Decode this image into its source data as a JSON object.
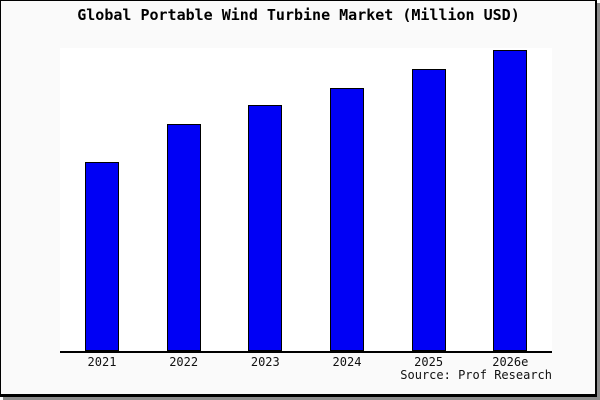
{
  "chart_data": {
    "type": "bar",
    "title": "Global Portable Wind Turbine Market (Million USD)",
    "categories": [
      "2021",
      "2022",
      "2023",
      "2024",
      "2025",
      "2026e"
    ],
    "values_relative": [
      100,
      120,
      130,
      139,
      149,
      159
    ],
    "value_note": "No y-axis, gridlines or data labels are shown; values estimated from bar heights relative to 2021 = 100",
    "unit": "Million USD",
    "xlabel": "",
    "ylabel": "",
    "grid": false,
    "legend": false,
    "source": "Source: Prof Research",
    "bar_color": "#0000f5",
    "bar_border_color": "#000000"
  },
  "colors": {
    "page_background": "#fafafa",
    "plot_background": "#ffffff",
    "frame_border": "#000000",
    "frame_shadow": "#8c8c8c",
    "axis_line": "#000000",
    "text": "#000000"
  }
}
